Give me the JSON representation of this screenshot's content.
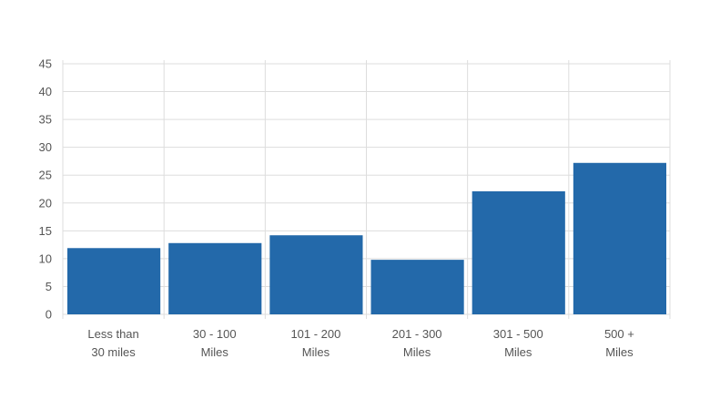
{
  "chart_data": {
    "type": "bar",
    "categories": [
      [
        "Less than",
        "30 miles"
      ],
      [
        "30 - 100",
        "Miles"
      ],
      [
        "101 - 200",
        "Miles"
      ],
      [
        "201 - 300",
        "Miles"
      ],
      [
        "301 - 500",
        "Miles"
      ],
      [
        "500 +",
        "Miles"
      ]
    ],
    "values": [
      11.9,
      12.8,
      14.2,
      9.8,
      22.1,
      27.2
    ],
    "title": "",
    "xlabel": "",
    "ylabel": "",
    "ylim": [
      0,
      45
    ],
    "yticks": [
      0,
      5,
      10,
      15,
      20,
      25,
      30,
      35,
      40,
      45
    ],
    "grid": true,
    "colors": {
      "bar": "#2369aa",
      "grid": "#dddddd",
      "text": "#555555"
    }
  }
}
